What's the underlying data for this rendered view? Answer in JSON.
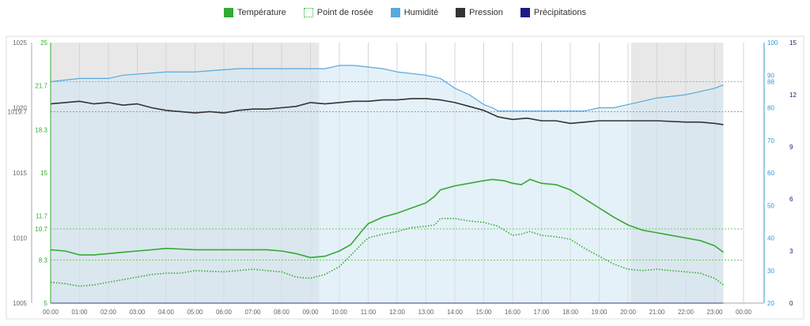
{
  "legend": [
    {
      "key": "temperature",
      "label": "Température",
      "color": "#33aa33",
      "style": "solid"
    },
    {
      "key": "dewpoint",
      "label": "Point de rosée",
      "color": "#33aa33",
      "style": "dotted"
    },
    {
      "key": "humidity",
      "label": "Humidité",
      "color": "#55aadd",
      "style": "solid"
    },
    {
      "key": "pressure",
      "label": "Pression",
      "color": "#333333",
      "style": "solid"
    },
    {
      "key": "precipitation",
      "label": "Précipitations",
      "color": "#1a1a88",
      "style": "solid"
    }
  ],
  "chart_data": {
    "type": "line",
    "x_ticks": [
      "00:00",
      "01:00",
      "02:00",
      "03:00",
      "04:00",
      "05:00",
      "06:00",
      "07:00",
      "08:00",
      "09:00",
      "10:00",
      "11:00",
      "12:00",
      "13:00",
      "14:00",
      "15:00",
      "16:00",
      "17:00",
      "18:00",
      "19:00",
      "20:00",
      "21:00",
      "22:00",
      "23:00",
      "00:00"
    ],
    "xlim_hours": [
      0,
      24
    ],
    "night_bands_hours": [
      [
        0,
        9.3
      ],
      [
        20.1,
        23.3
      ]
    ],
    "axes": {
      "pressure": {
        "ticks": [
          "1005",
          "1010",
          "1015",
          "1020",
          "1025"
        ],
        "min": 1005,
        "max": 1025,
        "color": "#666666",
        "extra_labels": [
          "1019.7"
        ]
      },
      "temperature": {
        "ticks": [
          "5",
          "8.3",
          "11.7",
          "15",
          "18.3",
          "21.7",
          "25"
        ],
        "min": 5,
        "max": 25,
        "color": "#33aa33",
        "extra_labels": [
          "10.7"
        ]
      },
      "humidity": {
        "ticks": [
          "20",
          "30",
          "40",
          "50",
          "60",
          "70",
          "80",
          "90",
          "100"
        ],
        "min": 20,
        "max": 100,
        "color": "#3399cc",
        "extra_labels": [
          "88"
        ]
      },
      "precipitation": {
        "ticks": [
          "0",
          "3",
          "6",
          "9",
          "12",
          "15"
        ],
        "min": 0,
        "max": 15,
        "color": "#1a1a66"
      }
    },
    "reference_lines": {
      "temperature": [
        {
          "value": 10.7,
          "label": "10.7"
        },
        {
          "value": 8.3,
          "label": ""
        }
      ],
      "humidity": [
        {
          "value": 88,
          "label": "88"
        }
      ],
      "pressure": [
        {
          "value": 1019.7,
          "label": "1019.7"
        }
      ]
    },
    "series": [
      {
        "name": "Température",
        "axis": "temperature",
        "style": "solid",
        "color": "#33aa33",
        "points": [
          [
            0,
            9.1
          ],
          [
            0.5,
            9.0
          ],
          [
            1,
            8.7
          ],
          [
            1.5,
            8.7
          ],
          [
            2,
            8.8
          ],
          [
            2.5,
            8.9
          ],
          [
            3,
            9.0
          ],
          [
            3.5,
            9.1
          ],
          [
            4,
            9.2
          ],
          [
            4.5,
            9.15
          ],
          [
            5,
            9.1
          ],
          [
            6,
            9.1
          ],
          [
            7,
            9.1
          ],
          [
            7.5,
            9.1
          ],
          [
            8,
            9.0
          ],
          [
            8.5,
            8.8
          ],
          [
            9,
            8.5
          ],
          [
            9.5,
            8.6
          ],
          [
            10,
            9.0
          ],
          [
            10.4,
            9.5
          ],
          [
            10.8,
            10.6
          ],
          [
            11,
            11.1
          ],
          [
            11.5,
            11.6
          ],
          [
            12,
            11.9
          ],
          [
            12.5,
            12.3
          ],
          [
            13,
            12.7
          ],
          [
            13.3,
            13.2
          ],
          [
            13.5,
            13.7
          ],
          [
            14,
            14.0
          ],
          [
            14.5,
            14.2
          ],
          [
            15,
            14.4
          ],
          [
            15.3,
            14.5
          ],
          [
            15.7,
            14.4
          ],
          [
            16,
            14.2
          ],
          [
            16.3,
            14.1
          ],
          [
            16.6,
            14.5
          ],
          [
            17,
            14.2
          ],
          [
            17.5,
            14.1
          ],
          [
            18,
            13.7
          ],
          [
            18.5,
            13.0
          ],
          [
            19,
            12.3
          ],
          [
            19.5,
            11.6
          ],
          [
            20,
            11.0
          ],
          [
            20.5,
            10.6
          ],
          [
            21,
            10.4
          ],
          [
            21.5,
            10.2
          ],
          [
            22,
            10.0
          ],
          [
            22.5,
            9.8
          ],
          [
            23,
            9.4
          ],
          [
            23.3,
            8.9
          ]
        ]
      },
      {
        "name": "Point de rosée",
        "axis": "temperature",
        "style": "dotted",
        "color": "#33aa33",
        "points": [
          [
            0,
            6.6
          ],
          [
            0.5,
            6.5
          ],
          [
            1,
            6.3
          ],
          [
            1.5,
            6.4
          ],
          [
            2,
            6.6
          ],
          [
            2.5,
            6.8
          ],
          [
            3,
            7.0
          ],
          [
            3.5,
            7.2
          ],
          [
            4,
            7.3
          ],
          [
            4.5,
            7.3
          ],
          [
            5,
            7.5
          ],
          [
            6,
            7.4
          ],
          [
            7,
            7.6
          ],
          [
            7.5,
            7.5
          ],
          [
            8,
            7.4
          ],
          [
            8.5,
            7.0
          ],
          [
            9,
            6.9
          ],
          [
            9.5,
            7.2
          ],
          [
            10,
            7.8
          ],
          [
            10.5,
            8.9
          ],
          [
            10.8,
            9.6
          ],
          [
            11,
            10.0
          ],
          [
            11.5,
            10.3
          ],
          [
            12,
            10.5
          ],
          [
            12.5,
            10.8
          ],
          [
            13,
            10.9
          ],
          [
            13.3,
            11.0
          ],
          [
            13.5,
            11.5
          ],
          [
            14,
            11.5
          ],
          [
            14.5,
            11.3
          ],
          [
            15,
            11.2
          ],
          [
            15.5,
            10.9
          ],
          [
            16,
            10.2
          ],
          [
            16.3,
            10.3
          ],
          [
            16.6,
            10.5
          ],
          [
            17,
            10.2
          ],
          [
            17.5,
            10.1
          ],
          [
            18,
            9.9
          ],
          [
            18.5,
            9.2
          ],
          [
            19,
            8.6
          ],
          [
            19.5,
            8.0
          ],
          [
            20,
            7.6
          ],
          [
            20.5,
            7.5
          ],
          [
            21,
            7.6
          ],
          [
            21.5,
            7.5
          ],
          [
            22,
            7.4
          ],
          [
            22.5,
            7.3
          ],
          [
            23,
            6.9
          ],
          [
            23.3,
            6.4
          ]
        ]
      },
      {
        "name": "Humidité",
        "axis": "humidity",
        "style": "solid",
        "color": "#55aadd",
        "fill": "#e6f2f9",
        "points": [
          [
            0,
            88
          ],
          [
            1,
            89
          ],
          [
            2,
            89
          ],
          [
            2.5,
            90
          ],
          [
            4,
            91
          ],
          [
            5,
            91
          ],
          [
            6.5,
            92
          ],
          [
            7,
            92
          ],
          [
            8,
            92
          ],
          [
            9,
            92
          ],
          [
            9.5,
            92
          ],
          [
            10,
            93
          ],
          [
            10.5,
            93
          ],
          [
            11.5,
            92
          ],
          [
            12,
            91
          ],
          [
            13,
            90
          ],
          [
            13.5,
            89
          ],
          [
            14,
            86
          ],
          [
            14.5,
            84
          ],
          [
            15,
            81
          ],
          [
            15.3,
            80
          ],
          [
            15.5,
            79
          ],
          [
            16,
            79
          ],
          [
            17,
            79
          ],
          [
            18,
            79
          ],
          [
            18.5,
            79
          ],
          [
            19,
            80
          ],
          [
            19.5,
            80
          ],
          [
            20,
            81
          ],
          [
            20.5,
            82
          ],
          [
            21,
            83
          ],
          [
            22,
            84
          ],
          [
            22.5,
            85
          ],
          [
            23,
            86
          ],
          [
            23.3,
            87
          ]
        ]
      },
      {
        "name": "Pression",
        "axis": "pressure",
        "style": "solid",
        "color": "#333333",
        "points": [
          [
            0,
            1020.3
          ],
          [
            0.5,
            1020.4
          ],
          [
            1,
            1020.5
          ],
          [
            1.5,
            1020.3
          ],
          [
            2,
            1020.4
          ],
          [
            2.5,
            1020.2
          ],
          [
            3,
            1020.3
          ],
          [
            3.5,
            1020.0
          ],
          [
            4,
            1019.8
          ],
          [
            4.5,
            1019.7
          ],
          [
            5,
            1019.6
          ],
          [
            5.5,
            1019.7
          ],
          [
            6,
            1019.6
          ],
          [
            6.5,
            1019.8
          ],
          [
            7,
            1019.9
          ],
          [
            7.5,
            1019.9
          ],
          [
            8,
            1020.0
          ],
          [
            8.5,
            1020.1
          ],
          [
            9,
            1020.4
          ],
          [
            9.5,
            1020.3
          ],
          [
            10,
            1020.4
          ],
          [
            10.5,
            1020.5
          ],
          [
            11,
            1020.5
          ],
          [
            11.5,
            1020.6
          ],
          [
            12,
            1020.6
          ],
          [
            12.5,
            1020.7
          ],
          [
            13,
            1020.7
          ],
          [
            13.5,
            1020.6
          ],
          [
            14,
            1020.4
          ],
          [
            14.5,
            1020.1
          ],
          [
            15,
            1019.8
          ],
          [
            15.5,
            1019.3
          ],
          [
            16,
            1019.1
          ],
          [
            16.5,
            1019.2
          ],
          [
            17,
            1019.0
          ],
          [
            17.5,
            1019.0
          ],
          [
            18,
            1018.8
          ],
          [
            18.5,
            1018.9
          ],
          [
            19,
            1019.0
          ],
          [
            20,
            1019.0
          ],
          [
            20.5,
            1019.0
          ],
          [
            21,
            1019.0
          ],
          [
            22,
            1018.9
          ],
          [
            22.5,
            1018.9
          ],
          [
            23,
            1018.8
          ],
          [
            23.3,
            1018.7
          ]
        ]
      },
      {
        "name": "Précipitations",
        "axis": "precipitation",
        "style": "solid",
        "color": "#1a1a88",
        "points": [
          [
            0,
            0
          ],
          [
            23.3,
            0
          ]
        ]
      }
    ]
  }
}
